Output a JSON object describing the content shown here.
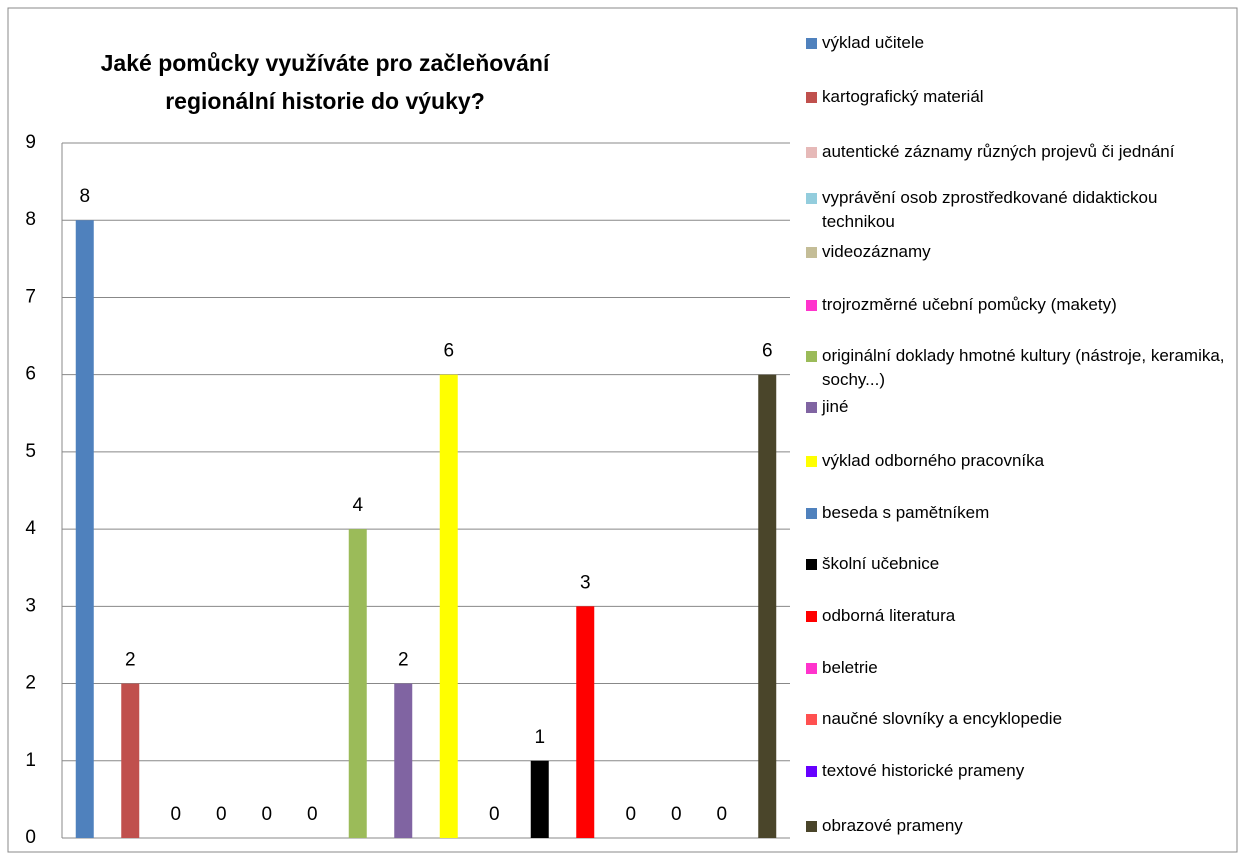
{
  "chart_data": {
    "type": "bar",
    "title": "Jaké pomůcky využíváte pro začleňování regionální historie do výuky?",
    "ylim": [
      0,
      9
    ],
    "yticks": [
      0,
      1,
      2,
      3,
      4,
      5,
      6,
      7,
      8,
      9
    ],
    "grid": true,
    "legend": "right",
    "series": [
      {
        "name": "výklad učitele",
        "color": "#4f81bd",
        "values": [
          8
        ]
      },
      {
        "name": "kartografický materiál",
        "color": "#c0504d",
        "values": [
          2
        ]
      },
      {
        "name": "autentické záznamy různých projevů či jednání",
        "color": "#e6b9b8",
        "values": [
          0
        ]
      },
      {
        "name": "vyprávění osob zprostředkované didaktickou technikou",
        "color": "#93cddd",
        "values": [
          0
        ]
      },
      {
        "name": "videozáznamy",
        "color": "#c4bd97",
        "values": [
          0
        ]
      },
      {
        "name": "trojrozměrné učební pomůcky (makety)",
        "color": "#ff33cc",
        "values": [
          0
        ]
      },
      {
        "name": "originální doklady hmotné kultury (nástroje, keramika, sochy...)",
        "color": "#9bbb59",
        "values": [
          4
        ]
      },
      {
        "name": "jiné",
        "color": "#8064a2",
        "values": [
          2
        ]
      },
      {
        "name": "výklad odborného pracovníka",
        "color": "#ffff00",
        "values": [
          6
        ]
      },
      {
        "name": "beseda s pamětníkem",
        "color": "#4f81bd",
        "values": [
          0
        ]
      },
      {
        "name": "školní učebnice",
        "color": "#000000",
        "values": [
          1
        ]
      },
      {
        "name": "odborná literatura",
        "color": "#ff0000",
        "values": [
          3
        ]
      },
      {
        "name": "beletrie",
        "color": "#ff33cc",
        "values": [
          0
        ]
      },
      {
        "name": "naučné slovníky a encyklopedie",
        "color": "#ff5050",
        "values": [
          0
        ]
      },
      {
        "name": "textové historické prameny",
        "color": "#6600ff",
        "values": [
          0
        ]
      },
      {
        "name": "obrazové prameny",
        "color": "#4a452a",
        "values": [
          6
        ]
      }
    ]
  }
}
